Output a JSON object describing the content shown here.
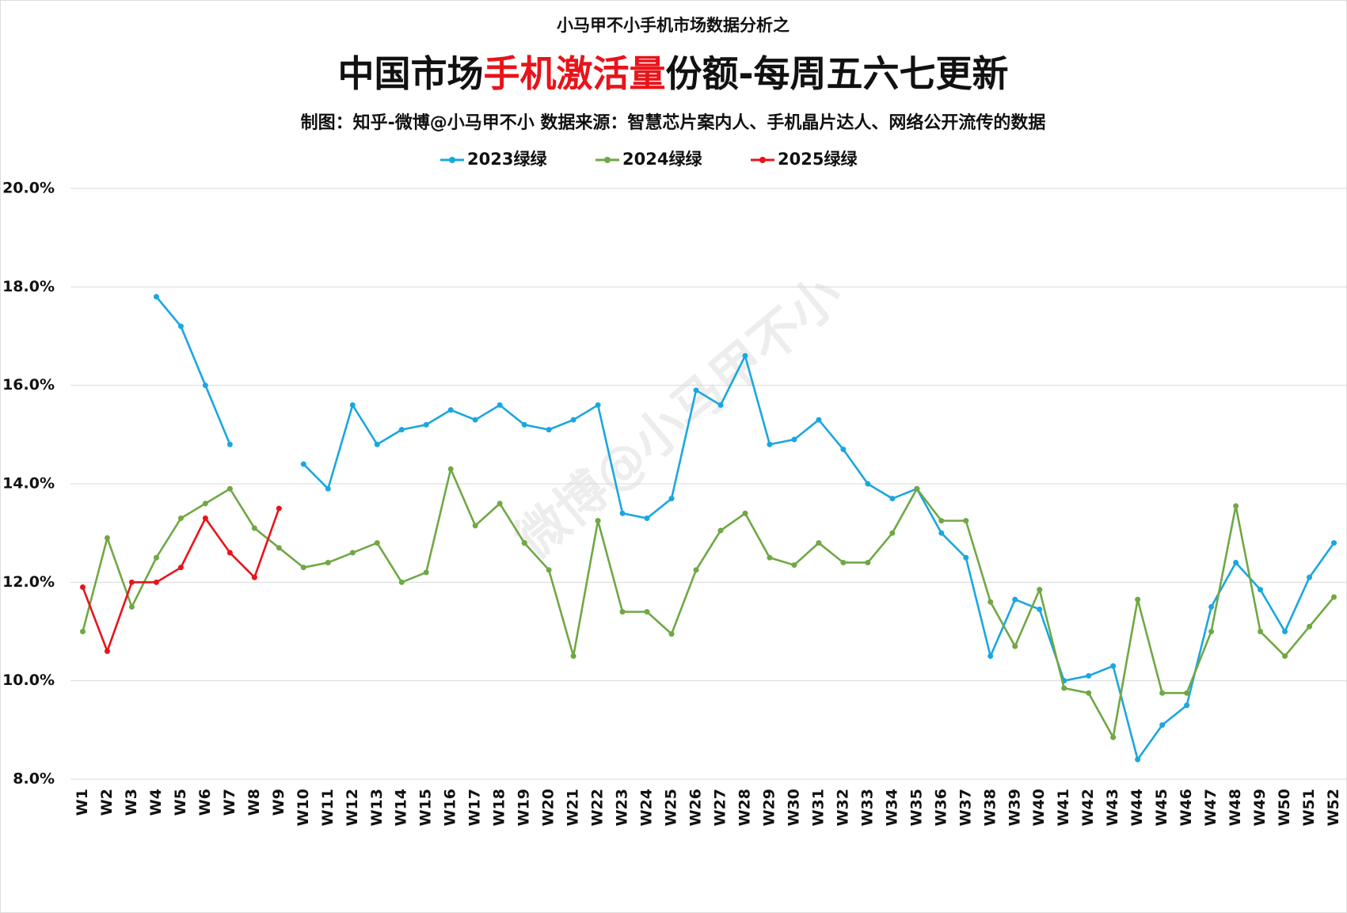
{
  "chart_data": {
    "type": "line",
    "supertitle": "小马甲不小手机市场数据分析之",
    "title": [
      "中国市场",
      "手机激活量",
      "份额-每周五六七更新"
    ],
    "title_colors": [
      "#111111",
      "#e8141a",
      "#111111"
    ],
    "subtitle": "制图：知乎-微博@小马甲不小  数据来源：智慧芯片案内人、手机晶片达人、网络公开流传的数据",
    "watermark": "微博@小马甲不小",
    "categories": [
      "W1",
      "W2",
      "W3",
      "W4",
      "W5",
      "W6",
      "W7",
      "W8",
      "W9",
      "W10",
      "W11",
      "W12",
      "W13",
      "W14",
      "W15",
      "W16",
      "W17",
      "W18",
      "W19",
      "W20",
      "W21",
      "W22",
      "W23",
      "W24",
      "W25",
      "W26",
      "W27",
      "W28",
      "W29",
      "W30",
      "W31",
      "W32",
      "W33",
      "W34",
      "W35",
      "W36",
      "W37",
      "W38",
      "W39",
      "W40",
      "W41",
      "W42",
      "W43",
      "W44",
      "W45",
      "W46",
      "W47",
      "W48",
      "W49",
      "W50",
      "W51",
      "W52"
    ],
    "series": [
      {
        "name": "2023绿绿",
        "color": "#1aa7e0",
        "values": [
          null,
          null,
          null,
          17.8,
          17.2,
          16.0,
          14.8,
          null,
          null,
          14.4,
          13.9,
          15.6,
          14.8,
          15.1,
          15.2,
          15.5,
          15.3,
          15.6,
          15.2,
          15.1,
          15.3,
          15.6,
          13.4,
          13.3,
          13.7,
          15.9,
          15.6,
          16.6,
          14.8,
          14.9,
          15.3,
          14.7,
          14.0,
          13.7,
          13.9,
          13.0,
          12.5,
          10.5,
          11.65,
          11.45,
          10.0,
          10.1,
          10.3,
          8.4,
          9.1,
          9.5,
          11.5,
          12.4,
          11.85,
          11.0,
          12.1,
          12.8
        ]
      },
      {
        "name": "2024绿绿",
        "color": "#70a844",
        "values": [
          11.0,
          12.9,
          11.5,
          12.5,
          13.3,
          13.6,
          13.9,
          13.1,
          12.7,
          12.3,
          12.4,
          12.6,
          12.8,
          12.0,
          12.2,
          14.3,
          13.15,
          13.6,
          12.8,
          12.25,
          10.5,
          13.25,
          11.4,
          11.4,
          10.95,
          12.25,
          13.05,
          13.4,
          12.5,
          12.35,
          12.8,
          12.4,
          12.4,
          13.0,
          13.9,
          13.25,
          13.25,
          11.6,
          10.7,
          11.85,
          9.85,
          9.75,
          8.85,
          11.65,
          9.75,
          9.75,
          11.0,
          13.55,
          11.0,
          10.5,
          11.1,
          11.7
        ]
      },
      {
        "name": "2025绿绿",
        "color": "#e8141a",
        "values": [
          11.9,
          10.6,
          12.0,
          12.0,
          12.3,
          13.3,
          12.6,
          12.1,
          13.5,
          null,
          null,
          null,
          null,
          null,
          null,
          null,
          null,
          null,
          null,
          null,
          null,
          null,
          null,
          null,
          null,
          null,
          null,
          null,
          null,
          null,
          null,
          null,
          null,
          null,
          null,
          null,
          null,
          null,
          null,
          null,
          null,
          null,
          null,
          null,
          null,
          null,
          null,
          null,
          null,
          null,
          null,
          null
        ]
      }
    ],
    "ylim": [
      8,
      20
    ],
    "yticks": [
      {
        "value": 8,
        "label": "8.0%"
      },
      {
        "value": 10,
        "label": "10.0%"
      },
      {
        "value": 12,
        "label": "12.0%"
      },
      {
        "value": 14,
        "label": "14.0%"
      },
      {
        "value": 16,
        "label": "16.0%"
      },
      {
        "value": 18,
        "label": "18.0%"
      },
      {
        "value": 20,
        "label": "20.0%"
      }
    ],
    "grid": true,
    "legend": "top"
  }
}
